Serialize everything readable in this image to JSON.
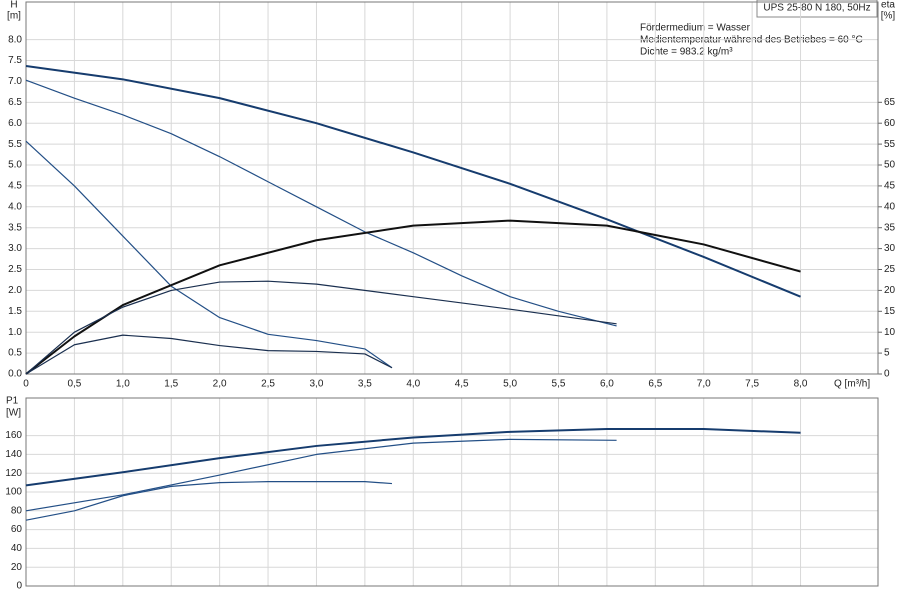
{
  "chart_data": [
    {
      "type": "line",
      "title": "UPS 25-80 N 180, 50Hz",
      "annotations": [
        "Fördermedium = Wasser",
        "Medientemperatur während des Betriebes = 60 °C",
        "Dichte = 983.2 kg/m³"
      ],
      "y_label": "H",
      "y_unit": "[m]",
      "y2_label": "eta",
      "y2_unit": "[%]",
      "x_label": "Q [m³/h]",
      "xlim": [
        0,
        8.8
      ],
      "ylim": [
        0,
        8.9
      ],
      "y2lim": [
        0,
        89
      ],
      "grid": true,
      "xticks": [
        0,
        {
          "value": 0.5,
          "label": "0,5"
        },
        {
          "value": 1,
          "label": "1,0"
        },
        {
          "value": 1.5,
          "label": "1,5"
        },
        {
          "value": 2,
          "label": "2,0"
        },
        {
          "value": 2.5,
          "label": "2,5"
        },
        {
          "value": 3,
          "label": "3,0"
        },
        {
          "value": 3.5,
          "label": "3,5"
        },
        {
          "value": 4,
          "label": "4,0"
        },
        {
          "value": 4.5,
          "label": "4,5"
        },
        {
          "value": 5,
          "label": "5,0"
        },
        {
          "value": 5.5,
          "label": "5,5"
        },
        {
          "value": 6,
          "label": "6,0"
        },
        {
          "value": 6.5,
          "label": "6,5"
        },
        {
          "value": 7,
          "label": "7,0"
        },
        {
          "value": 7.5,
          "label": "7,5"
        },
        {
          "value": 8,
          "label": "8,0"
        }
      ],
      "yticks": [
        {
          "value": 0,
          "label": "0.0"
        },
        0.5,
        {
          "value": 1,
          "label": "1.0"
        },
        1.5,
        {
          "value": 2,
          "label": "2.0"
        },
        2.5,
        {
          "value": 3,
          "label": "3.0"
        },
        3.5,
        {
          "value": 4,
          "label": "4.0"
        },
        4.5,
        {
          "value": 5,
          "label": "5.0"
        },
        5.5,
        {
          "value": 6,
          "label": "6.0"
        },
        6.5,
        {
          "value": 7,
          "label": "7.0"
        },
        7.5,
        {
          "value": 8,
          "label": "8.0"
        }
      ],
      "y2ticks": [
        0,
        5,
        10,
        15,
        20,
        25,
        30,
        35,
        40,
        45,
        50,
        55,
        60,
        65
      ],
      "series": [
        {
          "color": "#163c6e",
          "x": [
            0,
            1,
            2,
            3,
            4,
            5,
            6,
            7,
            8
          ],
          "values": [
            7.37,
            7.05,
            6.6,
            6.0,
            5.3,
            4.55,
            3.7,
            2.8,
            1.85
          ]
        },
        {
          "color": "#234f86",
          "x": [
            0,
            0.5,
            1,
            1.5,
            2,
            2.5,
            3,
            3.5,
            4,
            4.5,
            5,
            5.5,
            6.1
          ],
          "values": [
            7.03,
            6.6,
            6.2,
            5.75,
            5.2,
            4.6,
            4.0,
            3.4,
            2.9,
            2.35,
            1.85,
            1.5,
            1.15
          ]
        },
        {
          "color": "#234f86",
          "x": [
            0,
            0.5,
            1,
            1.5,
            2,
            2.5,
            3,
            3.5,
            3.78
          ],
          "values": [
            5.57,
            4.5,
            3.3,
            2.1,
            1.35,
            0.95,
            0.8,
            0.6,
            0.15
          ]
        },
        {
          "color": "#111111",
          "axis": "y2",
          "x": [
            0,
            0.5,
            1,
            2,
            3,
            4,
            5,
            6,
            7,
            8
          ],
          "values": [
            0,
            9,
            16.5,
            26,
            32,
            35.5,
            36.7,
            35.5,
            31,
            24.5
          ]
        },
        {
          "color": "#1a2f4f",
          "axis": "y2",
          "x": [
            0,
            0.5,
            1,
            1.5,
            2,
            2.5,
            3,
            4,
            5,
            6.1
          ],
          "values": [
            0,
            10,
            16,
            20,
            22,
            22.2,
            21.5,
            18.5,
            15.5,
            12
          ]
        },
        {
          "color": "#1a2f4f",
          "axis": "y2",
          "x": [
            0,
            0.5,
            1,
            1.5,
            2,
            2.5,
            3,
            3.5,
            3.78
          ],
          "values": [
            0,
            7,
            9.3,
            8.5,
            6.8,
            5.6,
            5.4,
            4.8,
            1.5
          ]
        }
      ]
    },
    {
      "type": "line",
      "y_label": "P1",
      "y_unit": "[W]",
      "xlim": [
        0,
        8.8
      ],
      "ylim": [
        0,
        200
      ],
      "grid": true,
      "xticks": [
        0,
        0.5,
        1,
        1.5,
        2,
        2.5,
        3,
        3.5,
        4,
        4.5,
        5,
        5.5,
        6,
        6.5,
        7,
        7.5,
        8
      ],
      "yticks": [
        0,
        20,
        40,
        60,
        80,
        100,
        120,
        140,
        160
      ],
      "series": [
        {
          "color": "#163c6e",
          "x": [
            0,
            1,
            2,
            3,
            4,
            5,
            6,
            7,
            8
          ],
          "values": [
            107,
            121,
            136,
            149,
            158,
            164,
            167,
            167,
            163
          ]
        },
        {
          "color": "#234f86",
          "x": [
            0,
            1,
            2,
            3,
            4,
            5,
            6.1
          ],
          "values": [
            80,
            97,
            118,
            140,
            152,
            156,
            155
          ]
        },
        {
          "color": "#234f86",
          "x": [
            0,
            0.5,
            1,
            1.5,
            2,
            2.5,
            3,
            3.5,
            3.78
          ],
          "values": [
            70,
            80,
            96,
            106,
            110,
            111,
            111,
            111,
            109
          ]
        }
      ]
    }
  ]
}
